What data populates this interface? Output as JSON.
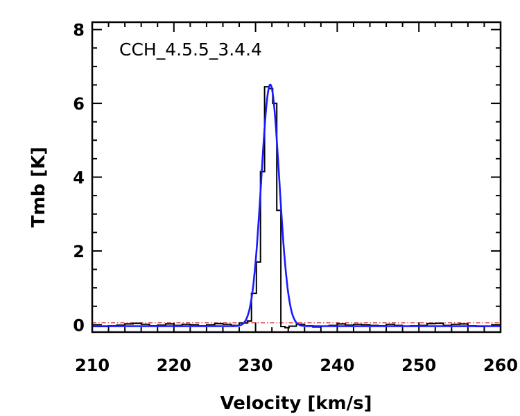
{
  "chart_data": {
    "type": "line",
    "annotation": "CCH_4.5.5_3.4.4",
    "xlabel": "Velocity [km/s]",
    "ylabel": "Tmb [K]",
    "xlim": [
      210,
      260
    ],
    "ylim": [
      -0.2,
      8.2
    ],
    "xticks": [
      210,
      220,
      230,
      240,
      250,
      260
    ],
    "yticks": [
      0,
      2,
      4,
      6,
      8
    ],
    "grid": false,
    "colors": {
      "observed": "#000000",
      "fit": "#1a1aff",
      "baseline": "#cc0000"
    },
    "series": [
      {
        "style": "step",
        "x": [
          210.0,
          211.0,
          212.0,
          213.0,
          214.0,
          215.0,
          216.0,
          217.0,
          218.0,
          219.0,
          220.0,
          221.0,
          222.0,
          223.0,
          224.0,
          225.0,
          226.0,
          227.0,
          228.0,
          229.0,
          229.5,
          230.1,
          230.6,
          231.1,
          231.6,
          232.1,
          232.6,
          233.1,
          233.6,
          234.1,
          235.0,
          236.0,
          237.0,
          238.0,
          239.0,
          240.0,
          241.0,
          242.0,
          243.0,
          244.0,
          245.0,
          246.0,
          247.0,
          248.0,
          249.0,
          250.0,
          251.0,
          252.0,
          253.0,
          254.0,
          255.0,
          256.0,
          257.0,
          258.0,
          259.0,
          260.0
        ],
        "y": [
          -0.05,
          -0.05,
          -0.03,
          -0.01,
          0.02,
          0.04,
          0.01,
          -0.03,
          -0.01,
          0.02,
          -0.02,
          0.01,
          0.0,
          -0.03,
          0.0,
          0.03,
          0.01,
          -0.02,
          0.05,
          0.1,
          0.85,
          1.7,
          4.15,
          6.45,
          6.4,
          6.0,
          3.1,
          -0.05,
          -0.08,
          -0.04,
          0.01,
          -0.03,
          -0.06,
          -0.04,
          -0.02,
          0.02,
          -0.01,
          0.01,
          0.0,
          -0.02,
          -0.03,
          0.01,
          -0.02,
          -0.04,
          -0.03,
          -0.02,
          0.03,
          0.04,
          -0.02,
          0.01,
          0.02,
          -0.03,
          -0.05,
          -0.04,
          -0.03,
          -0.03
        ]
      },
      {
        "style": "gaussian",
        "amplitude": 6.55,
        "center": 231.8,
        "fwhm": 2.6,
        "offset": -0.04
      },
      {
        "style": "dash-dot",
        "y": 0.05
      }
    ]
  }
}
